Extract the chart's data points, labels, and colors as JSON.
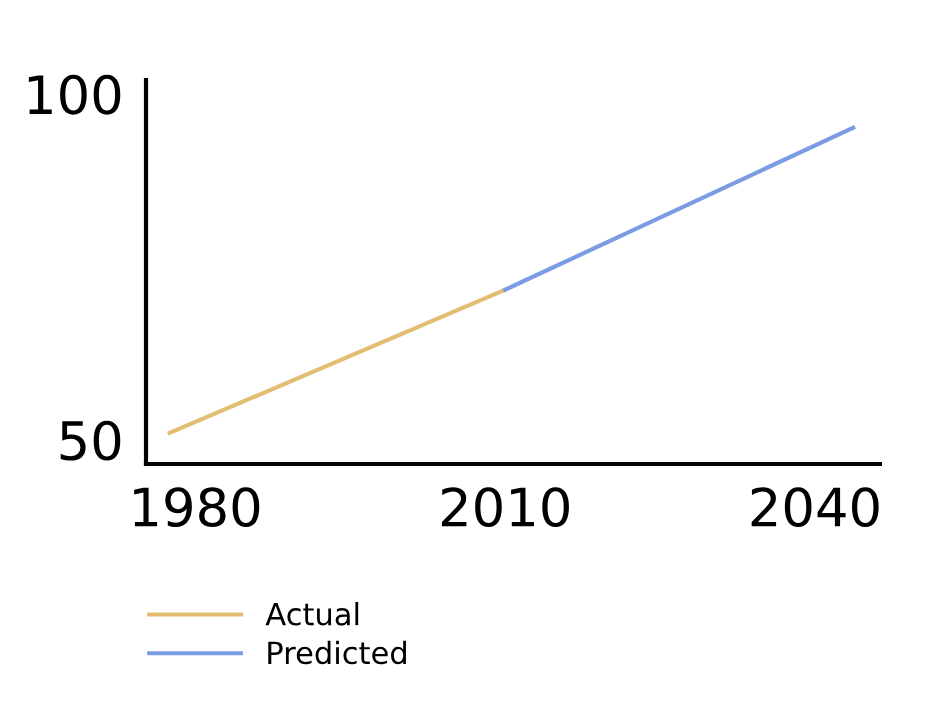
{
  "chart_data": {
    "type": "line",
    "series": [
      {
        "name": "Actual",
        "color": "#e2bd72",
        "x": [
          1977.5,
          2010
        ],
        "values": [
          51,
          71.7
        ]
      },
      {
        "name": "Predicted",
        "color": "#7b9be3",
        "x": [
          2010,
          2043.7
        ],
        "values": [
          71.7,
          95.1
        ]
      }
    ],
    "xlim": [
      1975.2,
      2046.3
    ],
    "xticks": [
      1980,
      2010,
      2040
    ],
    "ylim": [
      46.5,
      102
    ],
    "yticks": [
      50,
      100
    ],
    "grid": false,
    "legend": "bottom left",
    "marker": "none",
    "line_style": "solid"
  }
}
